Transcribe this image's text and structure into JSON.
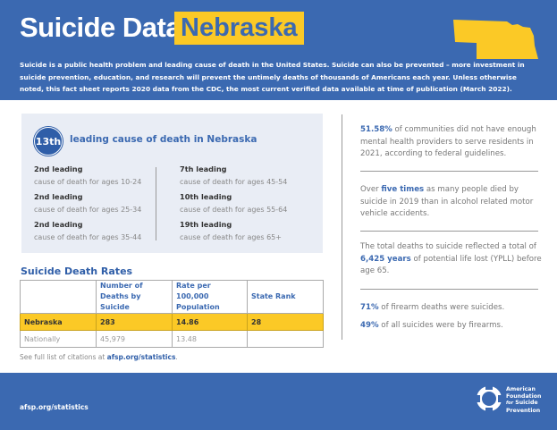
{
  "header": {
    "title": "Suicide Data:",
    "state": "Nebraska",
    "intro": "Suicide is a public health problem and leading cause of death in the United States. Suicide can also be prevented – more investment in suicide prevention, education, and research will prevent the untimely deaths of thousands of Americans each year. Unless otherwise noted, this fact sheet reports 2020 data from the CDC, the most current verified data available at time of publication (March 2022).",
    "colors": {
      "brand": "#3B69B1",
      "accent": "#FBC926"
    }
  },
  "ranking": {
    "rank": "13th",
    "label": "leading cause of death in Nebraska",
    "items": [
      {
        "rank": "2nd leading",
        "desc": "cause of death for ages 10-24"
      },
      {
        "rank": "2nd leading",
        "desc": "cause of death for ages 25-34"
      },
      {
        "rank": "2nd leading",
        "desc": "cause of death for ages 35-44"
      },
      {
        "rank": "7th leading",
        "desc": "cause of death for ages 45-54"
      },
      {
        "rank": "10th leading",
        "desc": "cause of death for ages 55-64"
      },
      {
        "rank": "19th leading",
        "desc": "cause of death for ages 65+"
      }
    ]
  },
  "rates": {
    "title": "Suicide Death Rates",
    "headers": [
      "",
      "Number of Deaths by Suicide",
      "Rate per 100,000 Population",
      "State Rank"
    ],
    "rows": [
      [
        "Nebraska",
        "283",
        "14.86",
        "28"
      ],
      [
        "Nationally",
        "45,979",
        "13.48",
        ""
      ]
    ]
  },
  "citation": {
    "prefix": "See full list of citations at ",
    "link": "afsp.org/statistics",
    "suffix": "."
  },
  "facts": [
    {
      "pre": "",
      "bold": "51.58%",
      "post": " of communities did not have enough mental health providers to serve residents in 2021, according to federal guidelines."
    },
    {
      "pre": "Over ",
      "bold": "five times",
      "post": " as many people died by suicide in 2019 than in alcohol related motor vehicle accidents."
    },
    {
      "pre": "The total deaths to suicide reflected a total of ",
      "bold": "6,425 years",
      "post": " of potential life lost (YPLL) before age 65."
    },
    {
      "pre": "",
      "bold": "71%",
      "post": " of firearm deaths were suicides."
    },
    {
      "pre": "",
      "bold": "49%",
      "post": " of all suicides were by firearms."
    }
  ],
  "footer": {
    "url": "afsp.org/statistics",
    "logo_text": "American Foundation for Suicide Prevention"
  }
}
